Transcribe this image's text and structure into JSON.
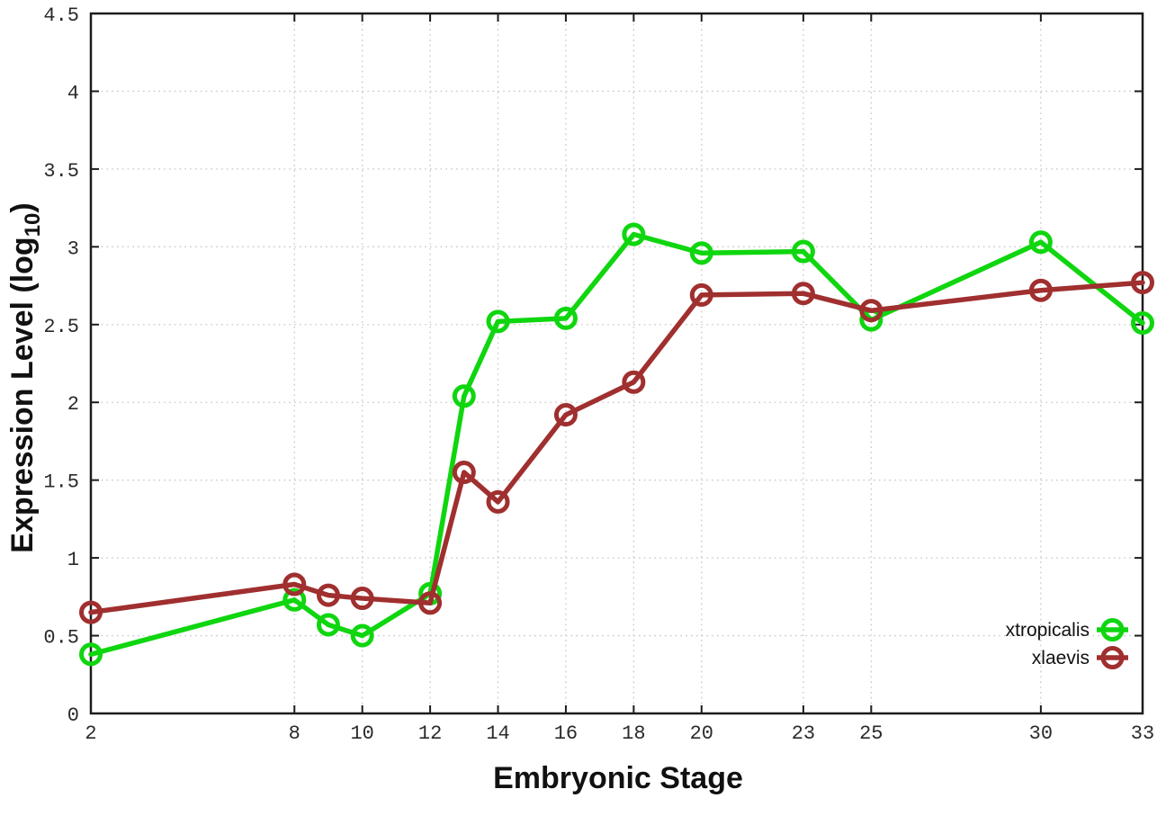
{
  "chart_data": {
    "type": "line",
    "title": "",
    "xlabel": "Embryonic Stage",
    "ylabel": {
      "prefix": "Expression Level (log",
      "subscript": "10",
      "suffix": ")"
    },
    "xlim": [
      2,
      33
    ],
    "ylim": [
      0,
      4.5
    ],
    "grid": true,
    "legend_position": "inside-bottom-right",
    "x_ticks": [
      {
        "value": 2,
        "label": "2"
      },
      {
        "value": 8,
        "label": "8"
      },
      {
        "value": 10,
        "label": "10"
      },
      {
        "value": 12,
        "label": "12"
      },
      {
        "value": 14,
        "label": "14"
      },
      {
        "value": 16,
        "label": "16"
      },
      {
        "value": 18,
        "label": "18"
      },
      {
        "value": 20,
        "label": "20"
      },
      {
        "value": 23,
        "label": "23"
      },
      {
        "value": 25,
        "label": "25"
      },
      {
        "value": 30,
        "label": "30"
      },
      {
        "value": 33,
        "label": "33"
      }
    ],
    "y_ticks": [
      {
        "value": 0,
        "label": "0"
      },
      {
        "value": 0.5,
        "label": "0.5"
      },
      {
        "value": 1,
        "label": "1"
      },
      {
        "value": 1.5,
        "label": "1.5"
      },
      {
        "value": 2,
        "label": "2"
      },
      {
        "value": 2.5,
        "label": "2.5"
      },
      {
        "value": 3,
        "label": "3"
      },
      {
        "value": 3.5,
        "label": "3.5"
      },
      {
        "value": 4,
        "label": "4"
      },
      {
        "value": 4.5,
        "label": "4.5"
      }
    ],
    "x": [
      2,
      8,
      9,
      10,
      12,
      13,
      14,
      16,
      18,
      20,
      23,
      25,
      30,
      33
    ],
    "series": [
      {
        "name": "xtropicalis",
        "color": "#0fd60f",
        "values": [
          0.38,
          0.73,
          0.57,
          0.5,
          0.77,
          2.04,
          2.52,
          2.54,
          3.08,
          2.96,
          2.97,
          2.53,
          3.03,
          2.51
        ]
      },
      {
        "name": "xlaevis",
        "color": "#a02f2f",
        "values": [
          0.65,
          0.83,
          0.76,
          0.74,
          0.71,
          1.55,
          1.36,
          1.92,
          2.13,
          2.69,
          2.7,
          2.59,
          2.72,
          2.77
        ]
      }
    ]
  },
  "colors": {
    "background": "#ffffff",
    "grid": "#c6c6c6",
    "axis": "#1c1c1c",
    "tick_text": "#2a2a2a",
    "title_text": "#111111"
  }
}
